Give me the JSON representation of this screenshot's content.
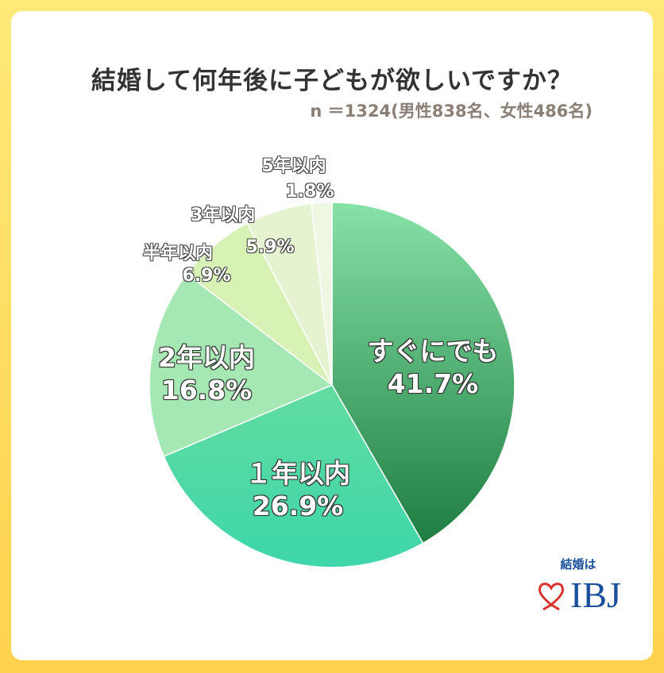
{
  "title": "結婚して何年後に子どもが欲しいですか？",
  "subtitle": "n ＝1324(男性838名、女性486名)",
  "logo": {
    "tagline": "結婚は",
    "brand": "IBJ"
  },
  "chart_data": {
    "type": "pie",
    "title": "結婚して何年後に子どもが欲しいですか？",
    "start": "top, clockwise",
    "slices": [
      {
        "label": "すぐにでも",
        "value": 41.7,
        "display": "41.7%",
        "color_top": "#86e2a6",
        "color_bottom": "#1f7d42"
      },
      {
        "label": "１年以内",
        "value": 26.9,
        "display": "26.9%",
        "color_top": "#62dca0",
        "color_bottom": "#3dd6aa"
      },
      {
        "label": "2年以内",
        "value": 16.8,
        "display": "16.8%",
        "color_top": "#a6e8b4",
        "color_bottom": "#a6e8b4"
      },
      {
        "label": "半年以内",
        "value": 6.9,
        "display": "6.9%",
        "color_top": "#d8f1b4",
        "color_bottom": "#d8f1b4"
      },
      {
        "label": "3年以内",
        "value": 5.9,
        "display": "5.9%",
        "color_top": "#e5f3d1",
        "color_bottom": "#e5f3d1"
      },
      {
        "label": "5年以内",
        "value": 1.8,
        "display": "1.8%",
        "color_top": "#eef7e2",
        "color_bottom": "#eef7e2"
      }
    ]
  }
}
